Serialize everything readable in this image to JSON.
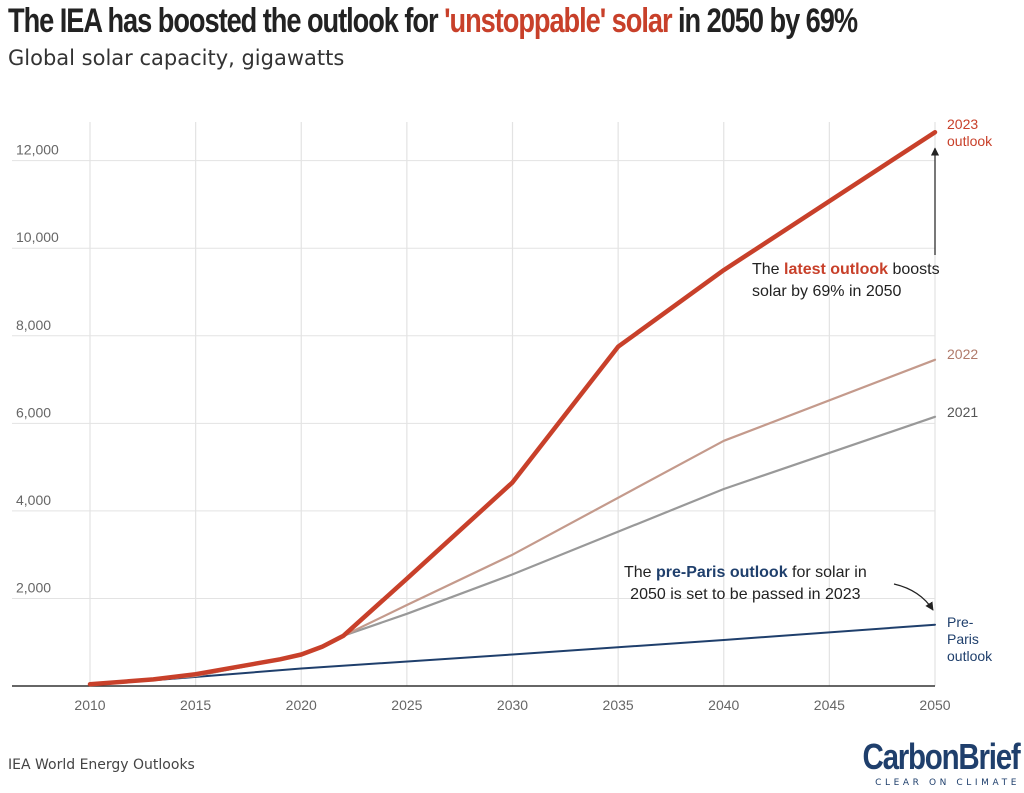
{
  "header": {
    "title_prefix": "The IEA has boosted the outlook for ",
    "title_highlight": "'unstoppable' solar",
    "title_suffix": " in 2050 by 69%",
    "subtitle": "Global solar capacity, gigawatts"
  },
  "source": "IEA World Energy Outlooks",
  "logo": {
    "name": "CarbonBrief",
    "tagline": "CLEAR ON CLIMATE"
  },
  "colors": {
    "outlook_2023": "#c8402a",
    "outlook_2022": "#c49a8c",
    "outlook_2021": "#999999",
    "pre_paris": "#1f3f6c",
    "grid": "#e3e3e3",
    "tick": "#666666"
  },
  "annotations": {
    "latest": {
      "pre": "The ",
      "bold": "latest outlook",
      "post": " boosts",
      "line2": "solar by 69% in 2050"
    },
    "pre_paris": {
      "pre": "The ",
      "bold": "pre-Paris outlook",
      "post": " for solar in",
      "line2": "2050 is set to be passed in 2023"
    }
  },
  "chart_data": {
    "type": "line",
    "title": "The IEA has boosted the outlook for 'unstoppable' solar in 2050 by 69%",
    "subtitle": "Global solar capacity, gigawatts",
    "xlabel": "",
    "ylabel": "",
    "xlim": [
      2010,
      2050
    ],
    "ylim": [
      0,
      12700
    ],
    "x_ticks": [
      2010,
      2015,
      2020,
      2025,
      2030,
      2035,
      2040,
      2045,
      2050
    ],
    "y_ticks": [
      2000,
      4000,
      6000,
      8000,
      10000,
      12000
    ],
    "y_tick_labels": [
      "2,000",
      "4,000",
      "6,000",
      "8,000",
      "10,000",
      "12,000"
    ],
    "grid": true,
    "legend": "none",
    "series": [
      {
        "key": "pre_paris",
        "label_lines": [
          "Pre-",
          "Paris",
          "outlook"
        ],
        "stroke_width": 2,
        "points": [
          [
            2010,
            40
          ],
          [
            2013,
            130
          ],
          [
            2020,
            400
          ],
          [
            2030,
            720
          ],
          [
            2040,
            1050
          ],
          [
            2050,
            1400
          ]
        ]
      },
      {
        "key": "outlook_2021",
        "label_lines": [
          "2021"
        ],
        "stroke_width": 2.2,
        "points": [
          [
            2010,
            40
          ],
          [
            2013,
            140
          ],
          [
            2015,
            230
          ],
          [
            2019,
            600
          ],
          [
            2020,
            720
          ],
          [
            2021,
            900
          ],
          [
            2022,
            1150
          ],
          [
            2025,
            1650
          ],
          [
            2030,
            2550
          ],
          [
            2040,
            4500
          ],
          [
            2050,
            6150
          ]
        ]
      },
      {
        "key": "outlook_2022",
        "label_lines": [
          "2022"
        ],
        "stroke_width": 2.2,
        "points": [
          [
            2010,
            40
          ],
          [
            2013,
            140
          ],
          [
            2015,
            230
          ],
          [
            2019,
            600
          ],
          [
            2020,
            720
          ],
          [
            2021,
            900
          ],
          [
            2022,
            1150
          ],
          [
            2025,
            1850
          ],
          [
            2030,
            3000
          ],
          [
            2040,
            5600
          ],
          [
            2050,
            7450
          ]
        ]
      },
      {
        "key": "outlook_2023",
        "label_lines": [
          "2023",
          "outlook"
        ],
        "stroke_width": 4.5,
        "points": [
          [
            2010,
            40
          ],
          [
            2013,
            150
          ],
          [
            2015,
            270
          ],
          [
            2019,
            610
          ],
          [
            2020,
            720
          ],
          [
            2021,
            900
          ],
          [
            2022,
            1150
          ],
          [
            2025,
            2450
          ],
          [
            2030,
            4650
          ],
          [
            2035,
            7750
          ],
          [
            2040,
            9500
          ],
          [
            2050,
            12650
          ]
        ]
      }
    ]
  }
}
